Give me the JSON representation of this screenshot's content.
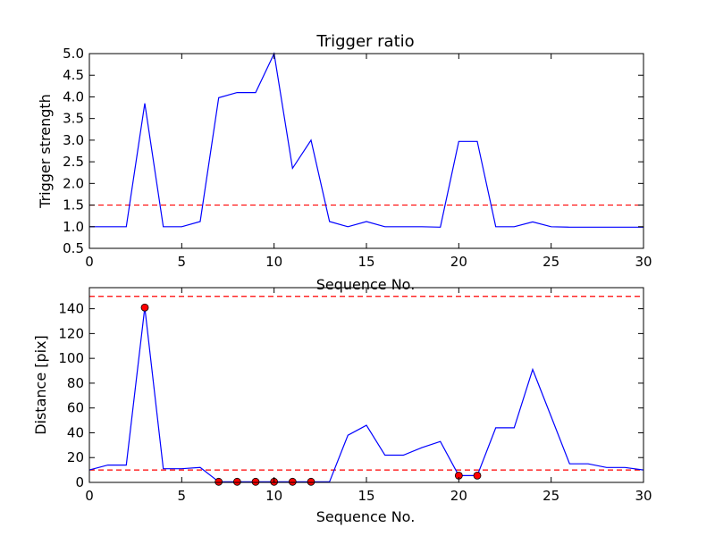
{
  "chart_data": [
    {
      "type": "line",
      "title": "Trigger ratio",
      "xlabel": "Sequence No.",
      "ylabel": "Trigger strength",
      "xlim": [
        0,
        30
      ],
      "ylim": [
        0.5,
        5.0
      ],
      "xticks": [
        0,
        5,
        10,
        15,
        20,
        25,
        30
      ],
      "yticks": [
        "0.5",
        "1.0",
        "1.5",
        "2.0",
        "2.5",
        "3.0",
        "3.5",
        "4.0",
        "4.5",
        "5.0"
      ],
      "grid": false,
      "colors": {
        "line": "#0000ff",
        "threshold": "#ff0000"
      },
      "series": [
        {
          "x": [
            0,
            1,
            2,
            3,
            4,
            5,
            6,
            7,
            8,
            9,
            10,
            11,
            12,
            13,
            14,
            15,
            16,
            17,
            18,
            19,
            20,
            21,
            22,
            23,
            24,
            25,
            26,
            27,
            28,
            29,
            30
          ],
          "values": [
            1.0,
            1.0,
            1.0,
            3.85,
            1.0,
            1.0,
            1.12,
            3.98,
            4.1,
            4.1,
            5.0,
            2.35,
            3.0,
            1.12,
            1.0,
            1.12,
            1.0,
            1.0,
            1.0,
            0.99,
            2.97,
            2.97,
            1.0,
            1.0,
            1.11,
            1.0,
            0.99,
            0.99,
            0.99,
            0.99,
            0.99
          ]
        }
      ],
      "thresholds": [
        1.5
      ]
    },
    {
      "type": "line",
      "title": "",
      "xlabel": "Sequence No.",
      "ylabel": "Distance [pix]",
      "xlim": [
        0,
        30
      ],
      "ylim": [
        0,
        157
      ],
      "xticks": [
        0,
        5,
        10,
        15,
        20,
        25,
        30
      ],
      "yticks": [
        0,
        20,
        40,
        60,
        80,
        100,
        120,
        140
      ],
      "grid": false,
      "colors": {
        "line": "#0000ff",
        "threshold": "#ff0000",
        "marker": "#ff0000"
      },
      "series": [
        {
          "x": [
            0,
            1,
            2,
            3,
            4,
            5,
            6,
            7,
            8,
            9,
            10,
            11,
            12,
            13,
            14,
            15,
            16,
            17,
            18,
            19,
            20,
            21,
            22,
            23,
            24,
            25,
            26,
            27,
            28,
            29,
            30
          ],
          "values": [
            10,
            14,
            14,
            141,
            11,
            11,
            12,
            0.5,
            0.5,
            0.5,
            0.5,
            0.5,
            0.5,
            0.5,
            38,
            46,
            22,
            22,
            28,
            33,
            5.5,
            5.5,
            44,
            44,
            91,
            53,
            15,
            15,
            12,
            12,
            10
          ]
        }
      ],
      "markers": {
        "x": [
          3,
          7,
          8,
          9,
          10,
          11,
          12,
          20,
          21
        ],
        "values": [
          141,
          0.5,
          0.5,
          0.5,
          0.5,
          0.5,
          0.5,
          5.5,
          5.5
        ]
      },
      "thresholds": [
        150,
        10
      ]
    }
  ]
}
